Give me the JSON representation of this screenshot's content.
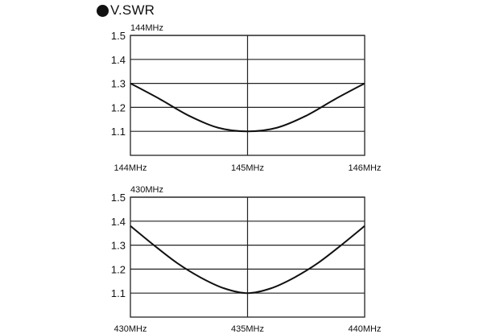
{
  "header": {
    "title": "V.SWR",
    "bullet_icon": "filled-circle-icon"
  },
  "style": {
    "ink": "#111111",
    "grid": "#222222",
    "background": "#ffffff"
  },
  "chart_data": [
    {
      "type": "line",
      "corner_label": "144MHz",
      "x_ticks": [
        {
          "value": 144,
          "label": "144MHz"
        },
        {
          "value": 145,
          "label": "145MHz"
        },
        {
          "value": 146,
          "label": "146MHz"
        }
      ],
      "xlim": [
        144,
        146
      ],
      "ylim": [
        1.0,
        1.5
      ],
      "y_ticks": [
        "1.1",
        "1.2",
        "1.3",
        "1.4",
        "1.5"
      ],
      "grid": true,
      "series": [
        {
          "x": [
            144.0,
            144.25,
            144.5,
            144.75,
            145.0,
            145.25,
            145.5,
            145.75,
            146.0
          ],
          "values": [
            1.3,
            1.235,
            1.165,
            1.115,
            1.1,
            1.115,
            1.165,
            1.235,
            1.3
          ]
        }
      ]
    },
    {
      "type": "line",
      "corner_label": "430MHz",
      "x_ticks": [
        {
          "value": 430,
          "label": "430MHz"
        },
        {
          "value": 435,
          "label": "435MHz"
        },
        {
          "value": 440,
          "label": "440MHz"
        }
      ],
      "xlim": [
        430,
        440
      ],
      "ylim": [
        1.0,
        1.5
      ],
      "y_ticks": [
        "1.1",
        "1.2",
        "1.3",
        "1.4",
        "1.5"
      ],
      "grid": true,
      "series": [
        {
          "x": [
            430.0,
            431.0,
            432.0,
            433.0,
            434.0,
            435.0,
            436.0,
            437.0,
            438.0,
            439.0,
            440.0
          ],
          "values": [
            1.38,
            1.3,
            1.225,
            1.165,
            1.12,
            1.1,
            1.12,
            1.165,
            1.225,
            1.3,
            1.38
          ]
        }
      ]
    }
  ]
}
